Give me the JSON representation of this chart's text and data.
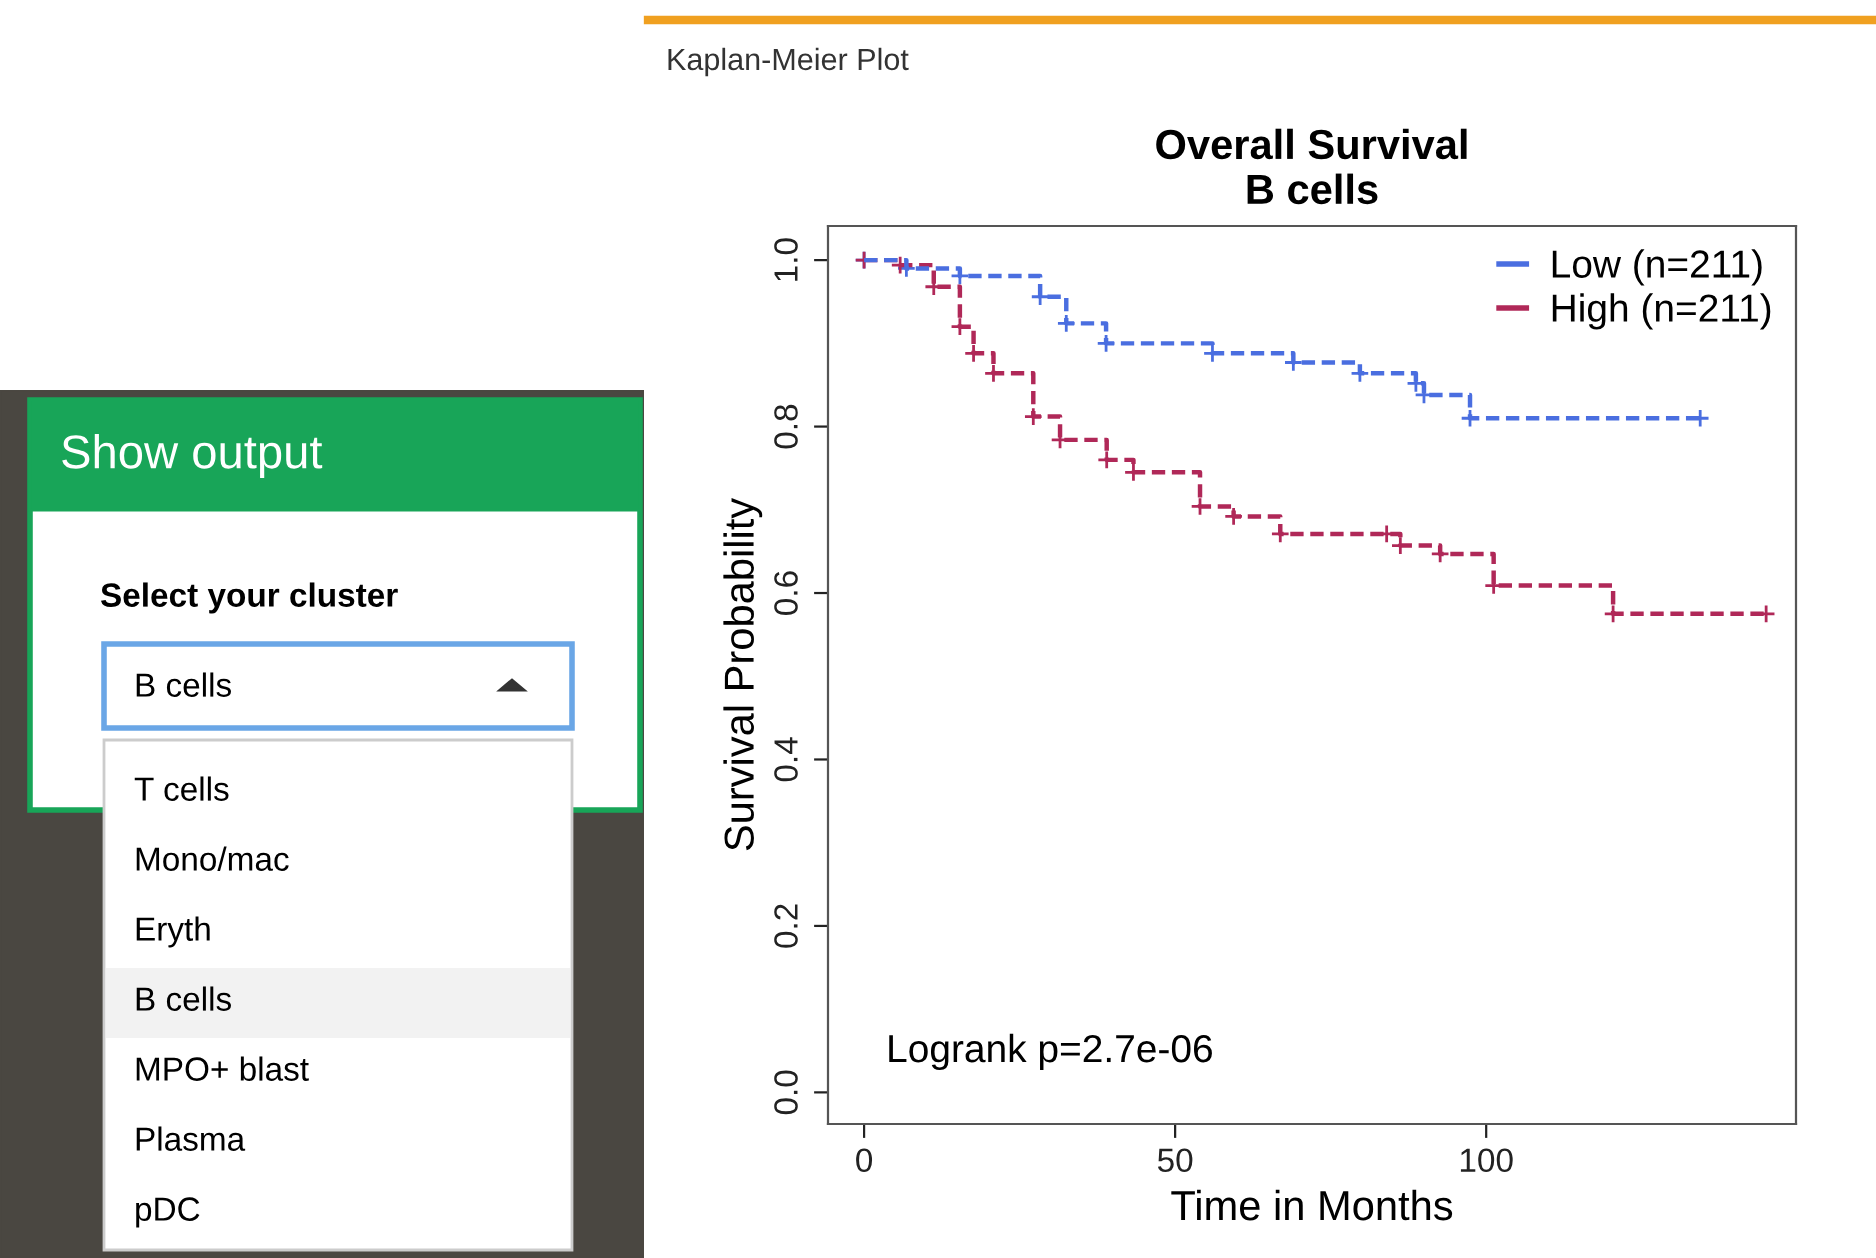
{
  "chart_data": [
    {
      "type": "other",
      "title": "Show output",
      "subtitle": "Select your cluster",
      "annotations": [
        "B cells",
        "T cells",
        "Mono/mac",
        "Eryth",
        "B cells",
        "MPO+ blast",
        "Plasma",
        "pDC"
      ]
    },
    {
      "type": "step",
      "title": "Overall Survival\nB cells",
      "xlabel": "Time in Months",
      "ylabel": "Survival Probability",
      "annotations": [
        "Kaplan-Meier Plot",
        "Logrank p=2.7e-06"
      ],
      "series": [
        {
          "name": "Low (n=211)",
          "color": "#4a6ee0",
          "x": [
            0,
            6.8,
            15.4,
            28.3,
            32.5,
            38.9,
            56,
            69,
            79.7,
            88.7,
            90,
            97.4,
            134.4
          ],
          "values": [
            1.0,
            0.99,
            0.981,
            0.956,
            0.924,
            0.9,
            0.888,
            0.877,
            0.864,
            0.852,
            0.838,
            0.81,
            0.81
          ]
        },
        {
          "name": "High (n=211)",
          "color": "#b02858",
          "x": [
            0,
            5.8,
            11.2,
            15.4,
            17.6,
            20.8,
            27.2,
            31.5,
            39,
            43.3,
            54,
            59.4,
            66.9,
            84,
            86.2,
            92.6,
            101.2,
            120.4,
            145
          ],
          "values": [
            1.0,
            0.994,
            0.968,
            0.92,
            0.888,
            0.864,
            0.812,
            0.784,
            0.76,
            0.745,
            0.704,
            0.692,
            0.671,
            0.671,
            0.657,
            0.647,
            0.609,
            0.575,
            0.575
          ]
        }
      ],
      "xlim": [
        -5.8,
        149.8
      ],
      "ylim": [
        -0.038,
        1.041
      ],
      "xticks": [
        0,
        50,
        100
      ],
      "yticks": [
        {
          "value": 0,
          "label": "0.0"
        },
        {
          "value": 0.2,
          "label": "0.2"
        },
        {
          "value": 0.4,
          "label": "0.4"
        },
        {
          "value": 0.6,
          "label": "0.6"
        },
        {
          "value": 0.8,
          "label": "0.8"
        },
        {
          "value": 1.0,
          "label": "1.0"
        }
      ],
      "grid": false,
      "legend": "top right",
      "marker": "cross",
      "line_style": "dashed"
    }
  ]
}
